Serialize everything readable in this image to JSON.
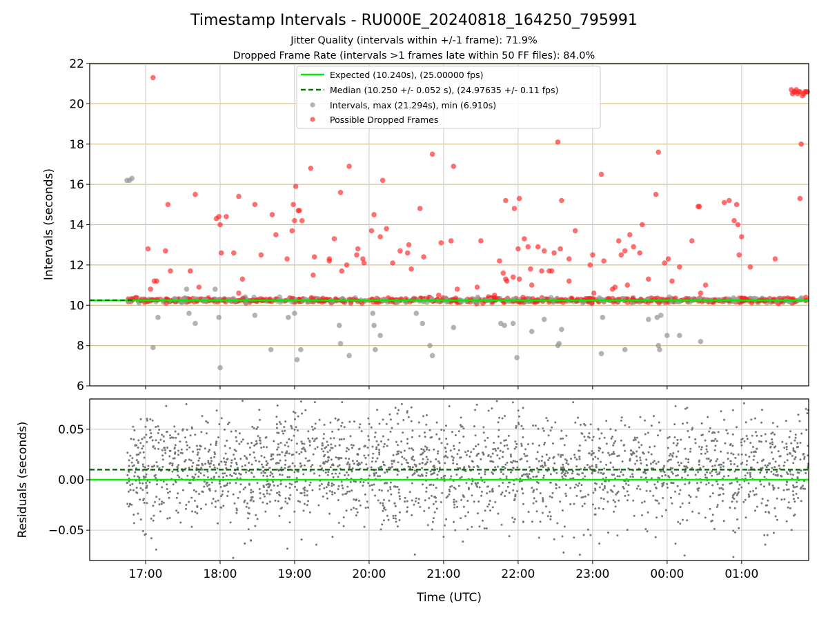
{
  "chart_data": {
    "type": "scatter",
    "title": "Timestamp Intervals - RU000E_20240818_164250_795991",
    "subtitle_lines": [
      "Jitter Quality (intervals within +/-1 frame): 71.9%",
      "Dropped Frame Rate (intervals >1 frames late within 50 FF files): 84.0%"
    ],
    "xlabel": "Time (UTC)",
    "x_range": [
      "2024-08-18T16:15",
      "2024-08-19T01:54"
    ],
    "x_ticks": [
      "17:00",
      "18:00",
      "19:00",
      "20:00",
      "21:00",
      "22:00",
      "23:00",
      "00:00",
      "01:00"
    ],
    "x_tick_times": [
      "2024-08-18T17:00",
      "2024-08-18T18:00",
      "2024-08-18T19:00",
      "2024-08-18T20:00",
      "2024-08-18T21:00",
      "2024-08-18T22:00",
      "2024-08-18T23:00",
      "2024-08-19T00:00",
      "2024-08-19T01:00"
    ],
    "panels": [
      {
        "name": "intervals",
        "ylabel": "Intervals (seconds)",
        "ylim": [
          6,
          22
        ],
        "y_ticks": [
          6,
          8,
          10,
          12,
          14,
          16,
          18,
          20,
          22
        ],
        "y_grid_color": "#d4c28a",
        "legend": {
          "position": "upper-center",
          "entries": [
            {
              "label": "Expected (10.240s), (25.00000 fps)",
              "kind": "solid-line",
              "color": "#00ee00"
            },
            {
              "label": "Median (10.250 +/- 0.052 s), (24.97635 +/- 0.11 fps)",
              "kind": "dashed-line",
              "color": "#007700"
            },
            {
              "label": "Intervals, max (21.294s), min (6.910s)",
              "kind": "marker",
              "color": "#999999"
            },
            {
              "label": "Possible Dropped Frames",
              "kind": "marker",
              "color": "#ff2222"
            }
          ]
        },
        "expected_value": 10.24,
        "median_value": 10.25,
        "band": {
          "x_start": "2024-08-18T16:45",
          "x_end": "2024-08-19T01:54",
          "y_center": 10.25,
          "y_spread": 0.06
        },
        "gray_outliers": [
          {
            "x": "2024-08-18T16:45",
            "y": 16.2
          },
          {
            "x": "2024-08-18T16:47",
            "y": 16.2
          },
          {
            "x": "2024-08-18T16:49",
            "y": 16.3
          },
          {
            "x": "2024-08-18T17:06",
            "y": 7.9
          },
          {
            "x": "2024-08-18T17:10",
            "y": 9.4
          },
          {
            "x": "2024-08-18T17:33",
            "y": 10.8
          },
          {
            "x": "2024-08-18T17:35",
            "y": 9.6
          },
          {
            "x": "2024-08-18T17:40",
            "y": 9.1
          },
          {
            "x": "2024-08-18T17:56",
            "y": 10.8
          },
          {
            "x": "2024-08-18T17:59",
            "y": 9.4
          },
          {
            "x": "2024-08-18T18:00",
            "y": 6.9
          },
          {
            "x": "2024-08-18T18:28",
            "y": 9.5
          },
          {
            "x": "2024-08-18T18:41",
            "y": 7.8
          },
          {
            "x": "2024-08-18T18:55",
            "y": 9.4
          },
          {
            "x": "2024-08-18T19:00",
            "y": 9.6
          },
          {
            "x": "2024-08-18T19:02",
            "y": 7.3
          },
          {
            "x": "2024-08-18T19:05",
            "y": 7.8
          },
          {
            "x": "2024-08-18T19:36",
            "y": 9.0
          },
          {
            "x": "2024-08-18T19:37",
            "y": 8.1
          },
          {
            "x": "2024-08-18T19:44",
            "y": 7.5
          },
          {
            "x": "2024-08-18T20:03",
            "y": 9.6
          },
          {
            "x": "2024-08-18T20:04",
            "y": 9.0
          },
          {
            "x": "2024-08-18T20:05",
            "y": 7.8
          },
          {
            "x": "2024-08-18T20:09",
            "y": 8.5
          },
          {
            "x": "2024-08-18T20:38",
            "y": 9.6
          },
          {
            "x": "2024-08-18T20:43",
            "y": 9.1
          },
          {
            "x": "2024-08-18T20:49",
            "y": 8.0
          },
          {
            "x": "2024-08-18T20:51",
            "y": 7.5
          },
          {
            "x": "2024-08-18T21:08",
            "y": 8.9
          },
          {
            "x": "2024-08-18T21:46",
            "y": 9.1
          },
          {
            "x": "2024-08-18T21:49",
            "y": 9.0
          },
          {
            "x": "2024-08-18T21:56",
            "y": 9.1
          },
          {
            "x": "2024-08-18T21:59",
            "y": 7.4
          },
          {
            "x": "2024-08-18T22:11",
            "y": 8.7
          },
          {
            "x": "2024-08-18T22:21",
            "y": 9.3
          },
          {
            "x": "2024-08-18T22:32",
            "y": 8.0
          },
          {
            "x": "2024-08-18T22:33",
            "y": 8.1
          },
          {
            "x": "2024-08-18T22:35",
            "y": 8.8
          },
          {
            "x": "2024-08-18T23:07",
            "y": 7.6
          },
          {
            "x": "2024-08-18T23:08",
            "y": 9.4
          },
          {
            "x": "2024-08-18T23:26",
            "y": 7.8
          },
          {
            "x": "2024-08-18T23:45",
            "y": 9.3
          },
          {
            "x": "2024-08-18T23:52",
            "y": 9.4
          },
          {
            "x": "2024-08-18T23:53",
            "y": 8.0
          },
          {
            "x": "2024-08-18T23:54",
            "y": 7.8
          },
          {
            "x": "2024-08-18T23:55",
            "y": 9.5
          },
          {
            "x": "2024-08-19T00:00",
            "y": 8.5
          },
          {
            "x": "2024-08-19T00:10",
            "y": 8.5
          },
          {
            "x": "2024-08-19T00:27",
            "y": 8.2
          }
        ],
        "dropped_frames": [
          {
            "x": "2024-08-18T17:02",
            "y": 12.8
          },
          {
            "x": "2024-08-18T17:04",
            "y": 10.8
          },
          {
            "x": "2024-08-18T17:06",
            "y": 21.3
          },
          {
            "x": "2024-08-18T17:07",
            "y": 11.2
          },
          {
            "x": "2024-08-18T17:09",
            "y": 11.2
          },
          {
            "x": "2024-08-18T17:16",
            "y": 12.7
          },
          {
            "x": "2024-08-18T17:18",
            "y": 15.0
          },
          {
            "x": "2024-08-18T17:20",
            "y": 11.7
          },
          {
            "x": "2024-08-18T17:36",
            "y": 11.7
          },
          {
            "x": "2024-08-18T17:40",
            "y": 15.5
          },
          {
            "x": "2024-08-18T17:43",
            "y": 10.9
          },
          {
            "x": "2024-08-18T17:57",
            "y": 14.3
          },
          {
            "x": "2024-08-18T17:59",
            "y": 14.4
          },
          {
            "x": "2024-08-18T18:00",
            "y": 14.0
          },
          {
            "x": "2024-08-18T18:01",
            "y": 12.6
          },
          {
            "x": "2024-08-18T18:05",
            "y": 14.4
          },
          {
            "x": "2024-08-18T18:11",
            "y": 12.6
          },
          {
            "x": "2024-08-18T18:15",
            "y": 10.6
          },
          {
            "x": "2024-08-18T18:15",
            "y": 15.4
          },
          {
            "x": "2024-08-18T18:18",
            "y": 11.3
          },
          {
            "x": "2024-08-18T18:28",
            "y": 15.0
          },
          {
            "x": "2024-08-18T18:33",
            "y": 12.5
          },
          {
            "x": "2024-08-18T18:42",
            "y": 14.5
          },
          {
            "x": "2024-08-18T18:45",
            "y": 13.5
          },
          {
            "x": "2024-08-18T18:54",
            "y": 12.3
          },
          {
            "x": "2024-08-18T18:58",
            "y": 13.7
          },
          {
            "x": "2024-08-18T18:59",
            "y": 15.0
          },
          {
            "x": "2024-08-18T19:00",
            "y": 14.2
          },
          {
            "x": "2024-08-18T19:01",
            "y": 15.9
          },
          {
            "x": "2024-08-18T19:03",
            "y": 14.7
          },
          {
            "x": "2024-08-18T19:04",
            "y": 14.7
          },
          {
            "x": "2024-08-18T19:06",
            "y": 14.2
          },
          {
            "x": "2024-08-18T19:13",
            "y": 16.8
          },
          {
            "x": "2024-08-18T19:15",
            "y": 11.5
          },
          {
            "x": "2024-08-18T19:16",
            "y": 12.4
          },
          {
            "x": "2024-08-18T19:28",
            "y": 12.3
          },
          {
            "x": "2024-08-18T19:28",
            "y": 12.2
          },
          {
            "x": "2024-08-18T19:32",
            "y": 13.3
          },
          {
            "x": "2024-08-18T19:37",
            "y": 15.6
          },
          {
            "x": "2024-08-18T19:38",
            "y": 11.7
          },
          {
            "x": "2024-08-18T19:42",
            "y": 12.0
          },
          {
            "x": "2024-08-18T19:44",
            "y": 16.9
          },
          {
            "x": "2024-08-18T19:50",
            "y": 12.5
          },
          {
            "x": "2024-08-18T19:51",
            "y": 12.8
          },
          {
            "x": "2024-08-18T19:55",
            "y": 12.3
          },
          {
            "x": "2024-08-18T19:56",
            "y": 12.1
          },
          {
            "x": "2024-08-18T20:02",
            "y": 13.7
          },
          {
            "x": "2024-08-18T20:04",
            "y": 14.5
          },
          {
            "x": "2024-08-18T20:09",
            "y": 13.4
          },
          {
            "x": "2024-08-18T20:11",
            "y": 16.2
          },
          {
            "x": "2024-08-18T20:14",
            "y": 13.8
          },
          {
            "x": "2024-08-18T20:19",
            "y": 12.1
          },
          {
            "x": "2024-08-18T20:25",
            "y": 12.7
          },
          {
            "x": "2024-08-18T20:31",
            "y": 12.6
          },
          {
            "x": "2024-08-18T20:32",
            "y": 13.0
          },
          {
            "x": "2024-08-18T20:34",
            "y": 11.8
          },
          {
            "x": "2024-08-18T20:41",
            "y": 14.8
          },
          {
            "x": "2024-08-18T20:44",
            "y": 12.4
          },
          {
            "x": "2024-08-18T20:51",
            "y": 17.5
          },
          {
            "x": "2024-08-18T20:56",
            "y": 10.5
          },
          {
            "x": "2024-08-18T20:58",
            "y": 13.1
          },
          {
            "x": "2024-08-18T21:06",
            "y": 13.2
          },
          {
            "x": "2024-08-18T21:08",
            "y": 16.9
          },
          {
            "x": "2024-08-18T21:11",
            "y": 10.8
          },
          {
            "x": "2024-08-18T21:27",
            "y": 10.9
          },
          {
            "x": "2024-08-18T21:30",
            "y": 13.2
          },
          {
            "x": "2024-08-18T21:41",
            "y": 10.5
          },
          {
            "x": "2024-08-18T21:45",
            "y": 12.2
          },
          {
            "x": "2024-08-18T21:48",
            "y": 11.6
          },
          {
            "x": "2024-08-18T21:50",
            "y": 15.2
          },
          {
            "x": "2024-08-18T21:50",
            "y": 11.3
          },
          {
            "x": "2024-08-18T21:51",
            "y": 11.2
          },
          {
            "x": "2024-08-18T21:56",
            "y": 11.4
          },
          {
            "x": "2024-08-18T21:57",
            "y": 14.8
          },
          {
            "x": "2024-08-18T22:00",
            "y": 12.8
          },
          {
            "x": "2024-08-18T22:01",
            "y": 15.3
          },
          {
            "x": "2024-08-18T22:01",
            "y": 11.3
          },
          {
            "x": "2024-08-18T22:05",
            "y": 13.3
          },
          {
            "x": "2024-08-18T22:08",
            "y": 12.9
          },
          {
            "x": "2024-08-18T22:10",
            "y": 11.8
          },
          {
            "x": "2024-08-18T22:11",
            "y": 11.0
          },
          {
            "x": "2024-08-18T22:16",
            "y": 12.9
          },
          {
            "x": "2024-08-18T22:19",
            "y": 11.7
          },
          {
            "x": "2024-08-18T22:21",
            "y": 12.7
          },
          {
            "x": "2024-08-18T22:25",
            "y": 11.7
          },
          {
            "x": "2024-08-18T22:27",
            "y": 11.7
          },
          {
            "x": "2024-08-18T22:29",
            "y": 12.6
          },
          {
            "x": "2024-08-18T22:32",
            "y": 18.1
          },
          {
            "x": "2024-08-18T22:34",
            "y": 12.8
          },
          {
            "x": "2024-08-18T22:35",
            "y": 15.2
          },
          {
            "x": "2024-08-18T22:41",
            "y": 12.3
          },
          {
            "x": "2024-08-18T22:41",
            "y": 11.2
          },
          {
            "x": "2024-08-18T22:46",
            "y": 13.7
          },
          {
            "x": "2024-08-18T22:58",
            "y": 12.0
          },
          {
            "x": "2024-08-18T23:00",
            "y": 12.5
          },
          {
            "x": "2024-08-18T23:01",
            "y": 10.6
          },
          {
            "x": "2024-08-18T23:07",
            "y": 16.5
          },
          {
            "x": "2024-08-18T23:09",
            "y": 12.2
          },
          {
            "x": "2024-08-18T23:16",
            "y": 10.8
          },
          {
            "x": "2024-08-18T23:18",
            "y": 10.9
          },
          {
            "x": "2024-08-18T23:21",
            "y": 13.2
          },
          {
            "x": "2024-08-18T23:23",
            "y": 12.5
          },
          {
            "x": "2024-08-18T23:26",
            "y": 12.7
          },
          {
            "x": "2024-08-18T23:28",
            "y": 11.0
          },
          {
            "x": "2024-08-18T23:30",
            "y": 13.5
          },
          {
            "x": "2024-08-18T23:33",
            "y": 12.9
          },
          {
            "x": "2024-08-18T23:38",
            "y": 12.6
          },
          {
            "x": "2024-08-18T23:40",
            "y": 14.0
          },
          {
            "x": "2024-08-18T23:45",
            "y": 11.3
          },
          {
            "x": "2024-08-18T23:51",
            "y": 15.5
          },
          {
            "x": "2024-08-18T23:53",
            "y": 17.6
          },
          {
            "x": "2024-08-18T23:58",
            "y": 12.1
          },
          {
            "x": "2024-08-19T00:01",
            "y": 12.3
          },
          {
            "x": "2024-08-19T00:04",
            "y": 11.2
          },
          {
            "x": "2024-08-19T00:10",
            "y": 11.9
          },
          {
            "x": "2024-08-19T00:20",
            "y": 13.2
          },
          {
            "x": "2024-08-19T00:25",
            "y": 14.9
          },
          {
            "x": "2024-08-19T00:26",
            "y": 14.9
          },
          {
            "x": "2024-08-19T00:27",
            "y": 10.6
          },
          {
            "x": "2024-08-19T00:31",
            "y": 11.0
          },
          {
            "x": "2024-08-19T00:46",
            "y": 15.1
          },
          {
            "x": "2024-08-19T00:50",
            "y": 15.2
          },
          {
            "x": "2024-08-19T00:54",
            "y": 14.2
          },
          {
            "x": "2024-08-19T00:56",
            "y": 15.0
          },
          {
            "x": "2024-08-19T00:57",
            "y": 14.0
          },
          {
            "x": "2024-08-19T00:58",
            "y": 12.5
          },
          {
            "x": "2024-08-19T01:00",
            "y": 13.4
          },
          {
            "x": "2024-08-19T01:07",
            "y": 11.9
          },
          {
            "x": "2024-08-19T01:27",
            "y": 12.3
          },
          {
            "x": "2024-08-19T01:40",
            "y": 20.7
          },
          {
            "x": "2024-08-19T01:41",
            "y": 20.5
          },
          {
            "x": "2024-08-19T01:42",
            "y": 20.6
          },
          {
            "x": "2024-08-19T01:43",
            "y": 20.6
          },
          {
            "x": "2024-08-19T01:44",
            "y": 20.7
          },
          {
            "x": "2024-08-19T01:45",
            "y": 20.5
          },
          {
            "x": "2024-08-19T01:46",
            "y": 20.6
          },
          {
            "x": "2024-08-19T01:47",
            "y": 20.6
          },
          {
            "x": "2024-08-19T01:47",
            "y": 15.3
          },
          {
            "x": "2024-08-19T01:48",
            "y": 18.0
          },
          {
            "x": "2024-08-19T01:49",
            "y": 20.4
          },
          {
            "x": "2024-08-19T01:50",
            "y": 20.5
          },
          {
            "x": "2024-08-19T01:51",
            "y": 20.6
          },
          {
            "x": "2024-08-19T01:52",
            "y": 20.6
          },
          {
            "x": "2024-08-19T01:53",
            "y": 20.6
          }
        ]
      },
      {
        "name": "residuals",
        "ylabel": "Residuals (seconds)",
        "ylim": [
          -0.08,
          0.08
        ],
        "y_ticks": [
          -0.05,
          0.0,
          0.05
        ],
        "y_tick_labels": [
          "−0.05",
          "0.00",
          "0.05"
        ],
        "zero_line_color": "#00ee00",
        "median_offset": 0.01,
        "median_line_color": "#007700",
        "point_color": "#777777",
        "x_start": "2024-08-18T16:45",
        "x_end": "2024-08-19T01:54",
        "point_count": 2400,
        "spread": 0.028
      }
    ]
  }
}
